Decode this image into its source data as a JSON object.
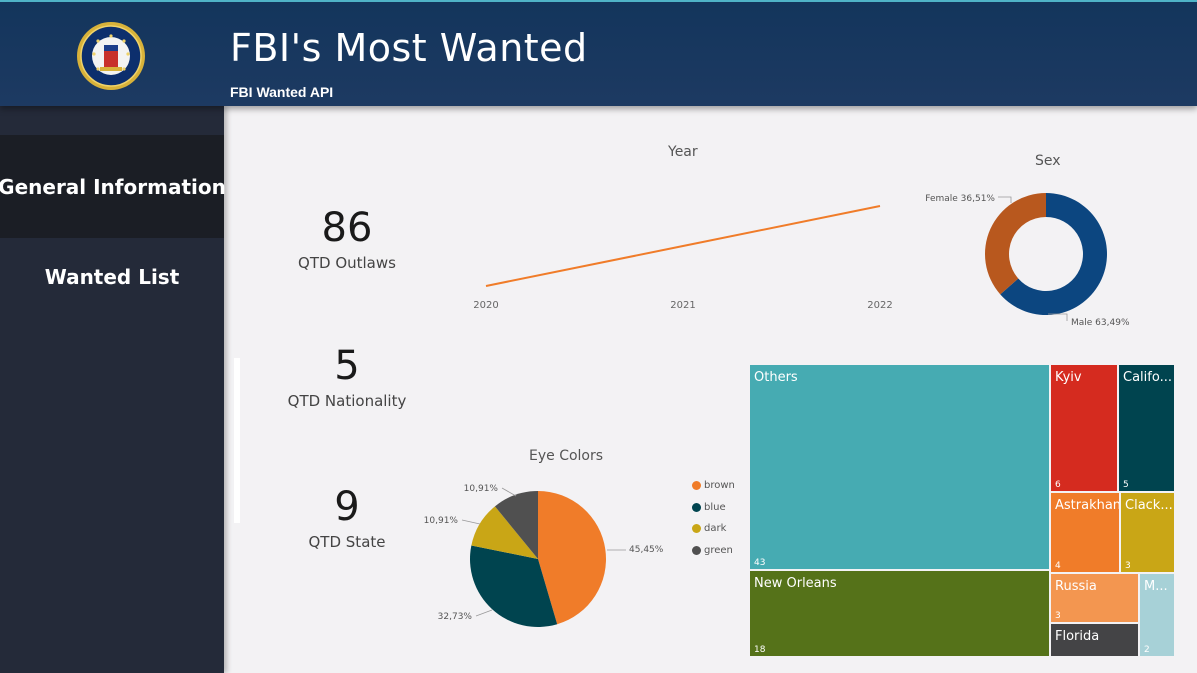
{
  "header": {
    "title": "FBI's Most Wanted",
    "subtitle": "FBI Wanted API",
    "logo": "fbi-seal-icon"
  },
  "sidebar": {
    "items": [
      {
        "label": "General Information",
        "active": true
      },
      {
        "label": "Wanted List",
        "active": false
      }
    ]
  },
  "kpis": {
    "outlaws": {
      "value": "86",
      "label": "QTD Outlaws"
    },
    "nationality": {
      "value": "5",
      "label": "QTD Nationality"
    },
    "state": {
      "value": "9",
      "label": "QTD State"
    }
  },
  "colors": {
    "orange": "#f07c29",
    "teal_dark": "#00444f",
    "gold": "#c9a616",
    "gray": "#505050",
    "blue": "#0c4680",
    "brown": "#b8581e",
    "teal": "#46abb2",
    "olive": "#557219",
    "red": "#d52b1f",
    "salmon": "#f39650",
    "light_teal": "#a7d1d7",
    "dark_gray": "#444446"
  },
  "chart_data": [
    {
      "type": "line",
      "title": "Year",
      "x": [
        "2020",
        "2021",
        "2022"
      ],
      "series": [
        {
          "values": [
            1,
            2,
            3
          ],
          "color": "#f07c29"
        }
      ],
      "y_axis_shown": false
    },
    {
      "type": "pie",
      "variant": "donut",
      "title": "Sex",
      "slices": [
        {
          "label": "Female",
          "value_label": "36,51%",
          "value": 36.51,
          "color": "#b8581e"
        },
        {
          "label": "Male",
          "value_label": "63,49%",
          "value": 63.49,
          "color": "#0c4680"
        }
      ]
    },
    {
      "type": "pie",
      "title": "Eye Colors",
      "legend_position": "right",
      "slices": [
        {
          "label": "brown",
          "value_label": "45,45%",
          "value": 45.45,
          "color": "#f07c29"
        },
        {
          "label": "blue",
          "value_label": "32,73%",
          "value": 32.73,
          "color": "#00444f"
        },
        {
          "label": "dark",
          "value_label": "10,91%",
          "value": 10.91,
          "color": "#c9a616"
        },
        {
          "label": "green",
          "value_label": "10,91%",
          "value": 10.91,
          "color": "#505050"
        }
      ]
    },
    {
      "type": "treemap",
      "title": "",
      "cells": [
        {
          "label": "Others",
          "value": "43",
          "color": "#46abb2"
        },
        {
          "label": "New Orleans",
          "value": "18",
          "color": "#557219"
        },
        {
          "label": "Kyiv",
          "value": "6",
          "color": "#d52b1f"
        },
        {
          "label": "Califo...",
          "value": "5",
          "color": "#00444f"
        },
        {
          "label": "Astrakhan",
          "value": "4",
          "color": "#f07c29"
        },
        {
          "label": "Clack...",
          "value": "3",
          "color": "#c9a616"
        },
        {
          "label": "Russia",
          "value": "3",
          "color": "#f39650"
        },
        {
          "label": "M...",
          "value": "2",
          "color": "#a7d1d7"
        },
        {
          "label": "Florida",
          "value": "",
          "color": "#444446"
        }
      ]
    }
  ]
}
